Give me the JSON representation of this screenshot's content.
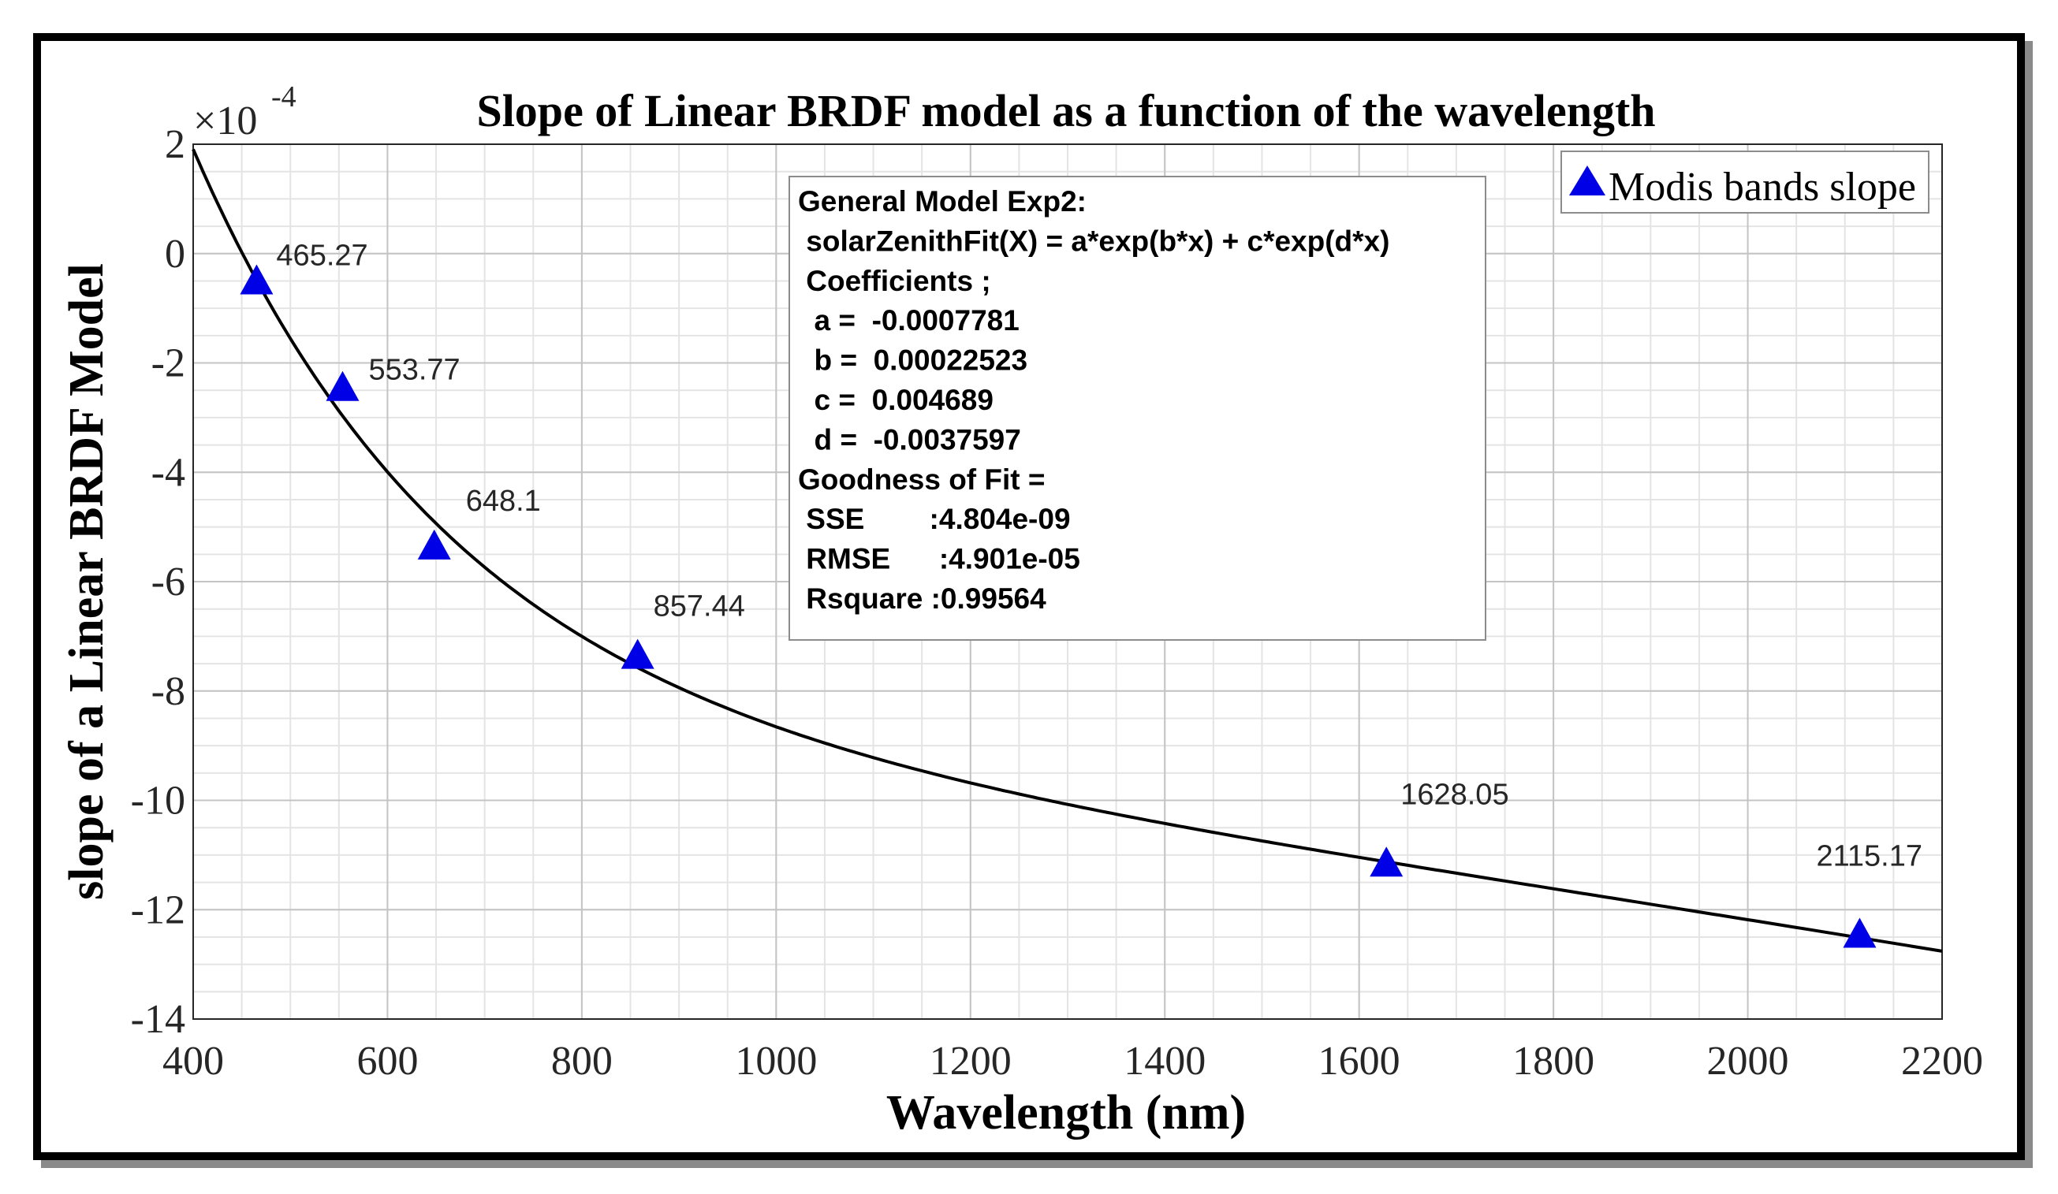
{
  "chart_data": {
    "type": "scatter",
    "title": "Slope of Linear BRDF model as a function of the wavelength",
    "xlabel": "Wavelength (nm)",
    "ylabel": "slope of a Linear BRDF Model",
    "y_exponent_label": "×10",
    "y_exponent": "-4",
    "xlim": [
      400,
      2200
    ],
    "ylim": [
      -14,
      2
    ],
    "x_ticks": [
      400,
      600,
      800,
      1000,
      1200,
      1400,
      1600,
      1800,
      2000,
      2200
    ],
    "y_ticks": [
      2,
      0,
      -2,
      -4,
      -6,
      -8,
      -10,
      -12,
      -14
    ],
    "x_minor_step": 50,
    "y_minor_step": 0.5,
    "grid": true,
    "legend": {
      "position": "top-right",
      "entries": [
        "Modis bands slope"
      ]
    },
    "series": [
      {
        "name": "Modis bands slope",
        "marker": "triangle",
        "color": "#0000e6",
        "x": [
          465.27,
          553.77,
          648.1,
          857.44,
          1628.05,
          2115.17
        ],
        "y": [
          -0.5,
          -2.45,
          -5.35,
          -7.35,
          -11.15,
          -12.45
        ],
        "labels": [
          "465.27",
          "553.77",
          "648.1",
          "857.44",
          "1628.05",
          "2115.17"
        ]
      }
    ],
    "fit": {
      "name": "exp2 fit",
      "color": "#000000",
      "a": -0.0007781,
      "b": 0.00022523,
      "c": 0.004689,
      "d": -0.0037597,
      "scale": 10000
    },
    "annotation_lines": [
      "General Model Exp2:",
      " solarZenithFit(X) = a*exp(b*x) + c*exp(d*x)",
      " Coefficients ;",
      "  a =  -0.0007781",
      "  b =  0.00022523",
      "  c =  0.004689",
      "  d =  -0.0037597",
      "Goodness of Fit =",
      " SSE        :4.804e-09",
      " RMSE      :4.901e-05",
      " Rsquare :0.99564"
    ]
  }
}
